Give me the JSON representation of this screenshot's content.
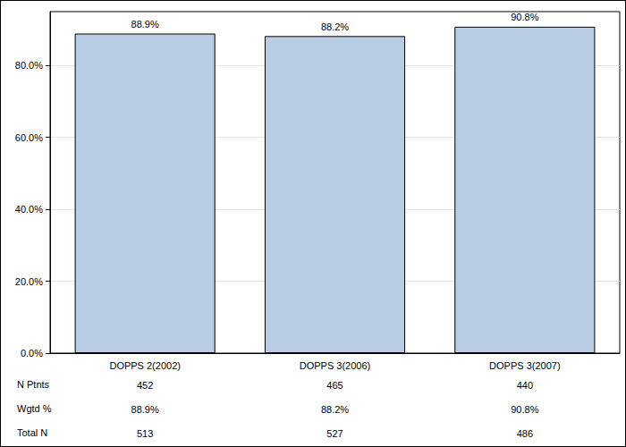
{
  "chart_data": {
    "type": "bar",
    "categories": [
      "DOPPS 2(2002)",
      "DOPPS 3(2006)",
      "DOPPS 3(2007)"
    ],
    "values": [
      88.9,
      88.2,
      90.8
    ],
    "value_labels": [
      "88.9%",
      "88.2%",
      "90.8%"
    ],
    "data_labels": true,
    "color": "#b8cce4",
    "ylim": [
      0,
      95
    ],
    "yticks": [
      {
        "value": 0,
        "label": "0.0%"
      },
      {
        "value": 20,
        "label": "20.0%"
      },
      {
        "value": 40,
        "label": "40.0%"
      },
      {
        "value": 60,
        "label": "60.0%"
      },
      {
        "value": 80,
        "label": "80.0%"
      }
    ],
    "grid": true
  },
  "table": {
    "rows": [
      {
        "label": "N Ptnts",
        "cells": [
          "452",
          "465",
          "440"
        ]
      },
      {
        "label": "Wgtd %",
        "cells": [
          "88.9%",
          "88.2%",
          "90.8%"
        ]
      },
      {
        "label": "Total N",
        "cells": [
          "513",
          "527",
          "486"
        ]
      }
    ]
  }
}
